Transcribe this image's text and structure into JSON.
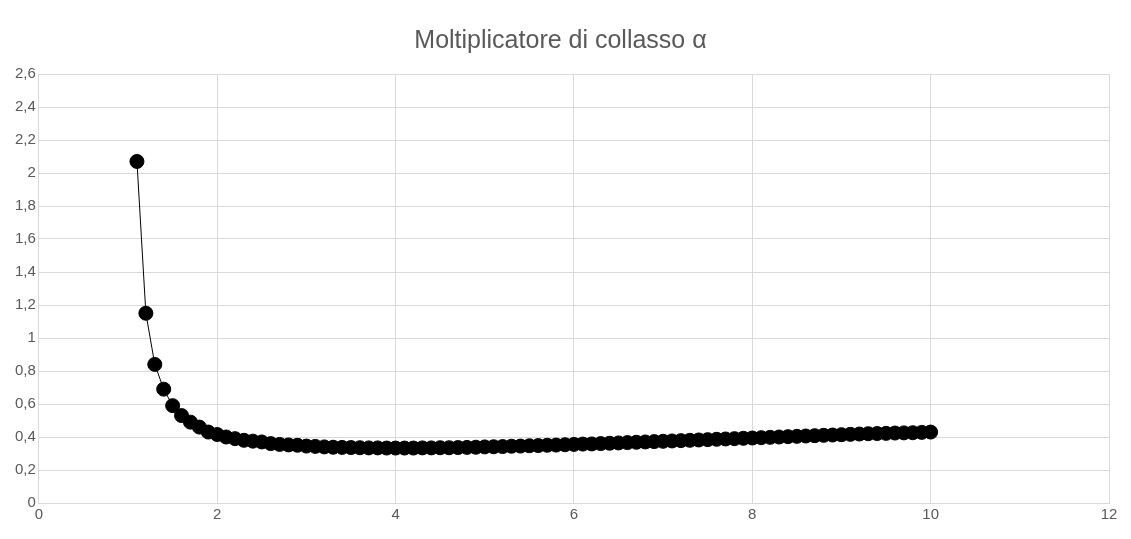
{
  "chart_data": {
    "type": "line",
    "title": "Moltiplicatore di collasso α",
    "x": [
      1.1,
      1.2,
      1.3,
      1.4,
      1.5,
      1.6,
      1.7,
      1.8,
      1.9,
      2.0,
      2.1,
      2.2,
      2.3,
      2.4,
      2.5,
      2.6,
      2.7,
      2.8,
      2.9,
      3.0,
      3.1,
      3.2,
      3.3,
      3.4,
      3.5,
      3.6,
      3.7,
      3.8,
      3.9,
      4.0,
      4.1,
      4.2,
      4.3,
      4.4,
      4.5,
      4.6,
      4.7,
      4.8,
      4.9,
      5.0,
      5.1,
      5.2,
      5.3,
      5.4,
      5.5,
      5.6,
      5.7,
      5.8,
      5.9,
      6.0,
      6.1,
      6.2,
      6.3,
      6.4,
      6.5,
      6.6,
      6.7,
      6.8,
      6.9,
      7.0,
      7.1,
      7.2,
      7.3,
      7.4,
      7.5,
      7.6,
      7.7,
      7.8,
      7.9,
      8.0,
      8.1,
      8.2,
      8.3,
      8.4,
      8.5,
      8.6,
      8.7,
      8.8,
      8.9,
      9.0,
      9.1,
      9.2,
      9.3,
      9.4,
      9.5,
      9.6,
      9.7,
      9.8,
      9.9,
      10.0
    ],
    "series": [
      {
        "color": "#000000",
        "values": [
          2.07,
          1.15,
          0.84,
          0.69,
          0.59,
          0.53,
          0.49,
          0.46,
          0.43,
          0.415,
          0.4,
          0.39,
          0.38,
          0.375,
          0.37,
          0.36,
          0.355,
          0.352,
          0.35,
          0.345,
          0.343,
          0.34,
          0.338,
          0.337,
          0.336,
          0.335,
          0.334,
          0.334,
          0.333,
          0.333,
          0.333,
          0.333,
          0.334,
          0.334,
          0.335,
          0.335,
          0.336,
          0.337,
          0.338,
          0.34,
          0.341,
          0.342,
          0.344,
          0.345,
          0.347,
          0.348,
          0.35,
          0.351,
          0.353,
          0.355,
          0.357,
          0.358,
          0.36,
          0.362,
          0.364,
          0.366,
          0.368,
          0.37,
          0.372,
          0.374,
          0.376,
          0.378,
          0.38,
          0.382,
          0.384,
          0.386,
          0.388,
          0.39,
          0.392,
          0.394,
          0.396,
          0.398,
          0.4,
          0.402,
          0.404,
          0.406,
          0.408,
          0.41,
          0.412,
          0.414,
          0.416,
          0.418,
          0.42,
          0.421,
          0.422,
          0.424,
          0.425,
          0.426,
          0.428,
          0.43
        ]
      }
    ],
    "xlim": [
      0,
      12
    ],
    "xticks": [
      0,
      2,
      4,
      6,
      8,
      10,
      12
    ],
    "ylim": [
      0,
      2.6
    ],
    "yticks": [
      0,
      {
        "value": 0.2,
        "label": "0,2"
      },
      {
        "value": 0.4,
        "label": "0,4"
      },
      {
        "value": 0.6,
        "label": "0,6"
      },
      {
        "value": 0.8,
        "label": "0,8"
      },
      1,
      {
        "value": 1.2,
        "label": "1,2"
      },
      {
        "value": 1.4,
        "label": "1,4"
      },
      {
        "value": 1.6,
        "label": "1,6"
      },
      {
        "value": 1.8,
        "label": "1,8"
      },
      2,
      {
        "value": 2.2,
        "label": "2,2"
      },
      {
        "value": 2.4,
        "label": "2,4"
      },
      {
        "value": 2.6,
        "label": "2,6"
      }
    ],
    "grid": true,
    "legend": false,
    "marker": "circle",
    "line_style": "solid"
  }
}
